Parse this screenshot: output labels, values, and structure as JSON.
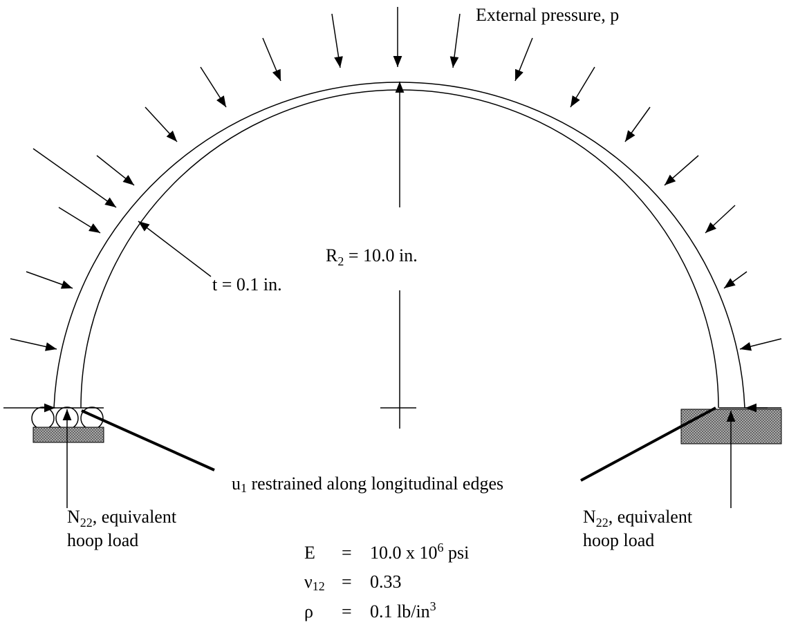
{
  "labels": {
    "pressure": "External pressure, p",
    "radius": {
      "symbol": "R",
      "subscript": "2",
      "text": " = 10.0 in."
    },
    "thickness": "t = 0.1 in.",
    "restraint": {
      "symbol": "u",
      "subscript": "1",
      "text": " restrained along longitudinal edges"
    },
    "hoop_left": {
      "symbol": "N",
      "subscript": "22",
      "line1": ", equivalent",
      "line2": "hoop load"
    },
    "hoop_right": {
      "symbol": "N",
      "subscript": "22",
      "line1": ", equivalent",
      "line2": "hoop load"
    }
  },
  "properties": [
    {
      "symbol": "E",
      "sign": "=",
      "value": "10.0 x 10",
      "superscript": "6",
      "unit": " psi"
    },
    {
      "symbol": "ν",
      "subscript": "12",
      "sign": "=",
      "value": "0.33"
    },
    {
      "symbol": "ρ",
      "sign": "=",
      "value": "0.1 lb/in",
      "superscript": "3"
    }
  ]
}
